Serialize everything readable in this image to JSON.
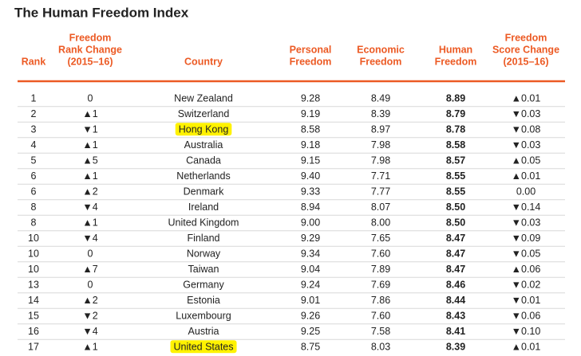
{
  "title": "The Human Freedom Index",
  "table": {
    "headers": [
      [
        "Rank"
      ],
      [
        "Freedom",
        "Rank Change",
        "(2015–16)"
      ],
      [
        "Country"
      ],
      [
        "Personal",
        "Freedom"
      ],
      [
        "Economic",
        "Freedom"
      ],
      [
        "Human",
        "Freedom"
      ],
      [
        "Freedom",
        "Score Change",
        "(2015–16)"
      ]
    ],
    "highlight_rows": [
      2,
      16
    ],
    "rows": [
      [
        1,
        "0",
        "New Zealand",
        "9.28",
        "8.49",
        "8.89",
        "▲0.01"
      ],
      [
        2,
        "▲1",
        "Switzerland",
        "9.19",
        "8.39",
        "8.79",
        "▼0.03"
      ],
      [
        3,
        "▼1",
        "Hong Kong",
        "8.58",
        "8.97",
        "8.78",
        "▼0.08"
      ],
      [
        4,
        "▲1",
        "Australia",
        "9.18",
        "7.98",
        "8.58",
        "▼0.03"
      ],
      [
        5,
        "▲5",
        "Canada",
        "9.15",
        "7.98",
        "8.57",
        "▲0.05"
      ],
      [
        6,
        "▲1",
        "Netherlands",
        "9.40",
        "7.71",
        "8.55",
        "▲0.01"
      ],
      [
        6,
        "▲2",
        "Denmark",
        "9.33",
        "7.77",
        "8.55",
        "0.00"
      ],
      [
        8,
        "▼4",
        "Ireland",
        "8.94",
        "8.07",
        "8.50",
        "▼0.14"
      ],
      [
        8,
        "▲1",
        "United Kingdom",
        "9.00",
        "8.00",
        "8.50",
        "▼0.03"
      ],
      [
        10,
        "▼4",
        "Finland",
        "9.29",
        "7.65",
        "8.47",
        "▼0.09"
      ],
      [
        10,
        "0",
        "Norway",
        "9.34",
        "7.60",
        "8.47",
        "▼0.05"
      ],
      [
        10,
        "▲7",
        "Taiwan",
        "9.04",
        "7.89",
        "8.47",
        "▲0.06"
      ],
      [
        13,
        "0",
        "Germany",
        "9.24",
        "7.69",
        "8.46",
        "▼0.02"
      ],
      [
        14,
        "▲2",
        "Estonia",
        "9.01",
        "7.86",
        "8.44",
        "▼0.01"
      ],
      [
        15,
        "▼2",
        "Luxembourg",
        "9.26",
        "7.60",
        "8.43",
        "▼0.06"
      ],
      [
        16,
        "▼4",
        "Austria",
        "9.25",
        "7.58",
        "8.41",
        "▼0.10"
      ],
      [
        17,
        "▲1",
        "United States",
        "8.75",
        "8.03",
        "8.39",
        "▲0.01"
      ]
    ]
  }
}
